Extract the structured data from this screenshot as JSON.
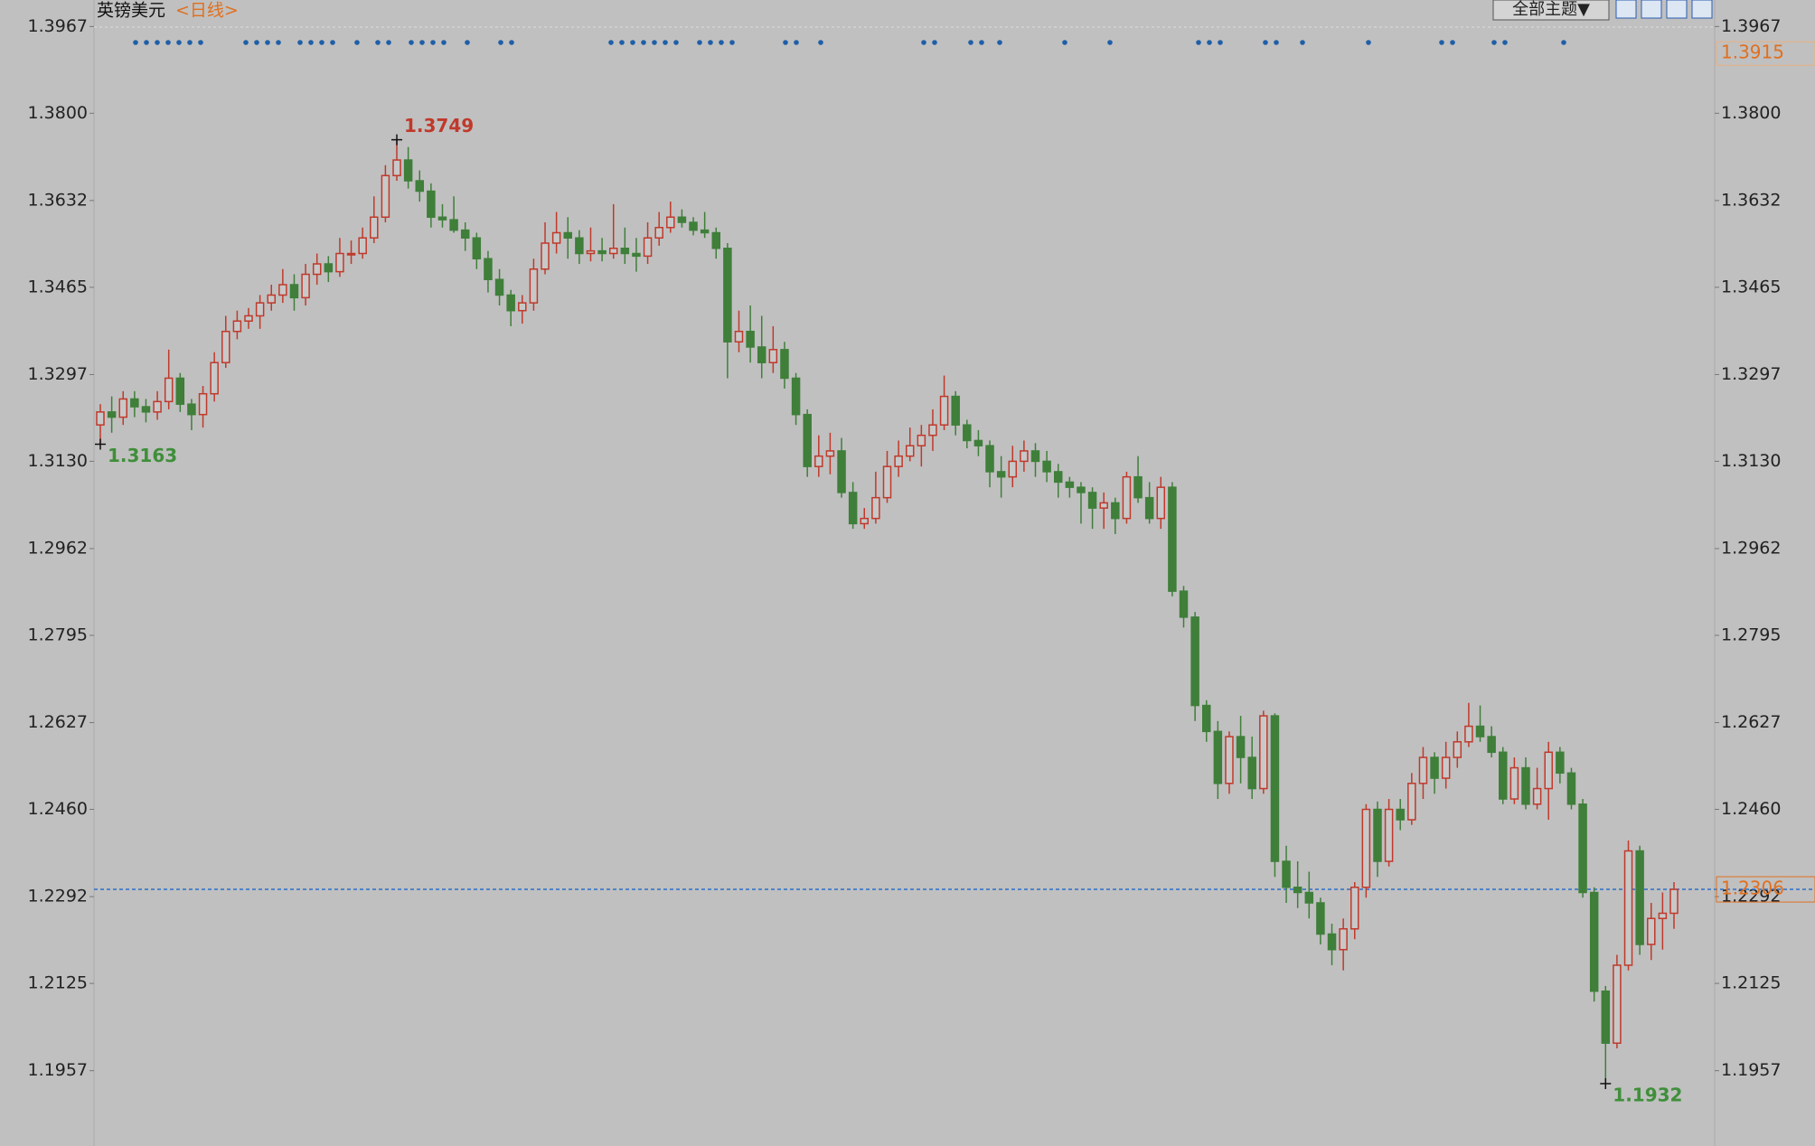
{
  "chart_data": {
    "type": "candlestick",
    "title": "英镑美元",
    "period": "<日线>",
    "theme_button": "全部主题▼",
    "ylim": [
      1.1812,
      1.4018
    ],
    "yticks": [
      1.3967,
      {
        "value": 1.38,
        "label": "1.3800"
      },
      1.3632,
      1.3465,
      1.3297,
      {
        "value": 1.313,
        "label": "1.3130"
      },
      1.2962,
      1.2795,
      1.2627,
      {
        "value": 1.246,
        "label": "1.2460"
      },
      1.2292,
      1.2125,
      1.1957
    ],
    "up_color": "#c0392b",
    "down_color": "#3f7f3a",
    "last_price": 1.2306,
    "marker_price": 1.3915,
    "high_label": 1.3749,
    "low_labels": [
      1.3163,
      1.1932
    ],
    "candles": [
      [
        1.32,
        1.324,
        1.3163,
        1.3225
      ],
      [
        1.3225,
        1.3255,
        1.3185,
        1.3215
      ],
      [
        1.3215,
        1.3265,
        1.32,
        1.325
      ],
      [
        1.325,
        1.3265,
        1.3215,
        1.3235
      ],
      [
        1.3235,
        1.325,
        1.3205,
        1.3225
      ],
      [
        1.3225,
        1.3265,
        1.321,
        1.3245
      ],
      [
        1.3245,
        1.3345,
        1.323,
        1.329
      ],
      [
        1.329,
        1.33,
        1.3225,
        1.324
      ],
      [
        1.324,
        1.325,
        1.319,
        1.322
      ],
      [
        1.322,
        1.3275,
        1.3195,
        1.326
      ],
      [
        1.326,
        1.334,
        1.3245,
        1.332
      ],
      [
        1.332,
        1.341,
        1.331,
        1.338
      ],
      [
        1.338,
        1.342,
        1.3365,
        1.34
      ],
      [
        1.34,
        1.3425,
        1.3385,
        1.341
      ],
      [
        1.341,
        1.345,
        1.3385,
        1.3435
      ],
      [
        1.3435,
        1.347,
        1.342,
        1.345
      ],
      [
        1.345,
        1.35,
        1.3435,
        1.347
      ],
      [
        1.347,
        1.349,
        1.342,
        1.3445
      ],
      [
        1.3445,
        1.351,
        1.343,
        1.349
      ],
      [
        1.349,
        1.353,
        1.347,
        1.351
      ],
      [
        1.351,
        1.3525,
        1.3475,
        1.3495
      ],
      [
        1.3495,
        1.356,
        1.3485,
        1.353
      ],
      [
        1.353,
        1.3555,
        1.351,
        1.353
      ],
      [
        1.353,
        1.358,
        1.352,
        1.356
      ],
      [
        1.356,
        1.364,
        1.355,
        1.36
      ],
      [
        1.36,
        1.37,
        1.359,
        1.368
      ],
      [
        1.368,
        1.3749,
        1.367,
        1.371
      ],
      [
        1.371,
        1.3735,
        1.3655,
        1.367
      ],
      [
        1.367,
        1.369,
        1.363,
        1.365
      ],
      [
        1.365,
        1.3665,
        1.358,
        1.36
      ],
      [
        1.36,
        1.3625,
        1.358,
        1.3595
      ],
      [
        1.3595,
        1.364,
        1.357,
        1.3575
      ],
      [
        1.3575,
        1.359,
        1.3535,
        1.356
      ],
      [
        1.356,
        1.357,
        1.35,
        1.352
      ],
      [
        1.352,
        1.3535,
        1.3455,
        1.348
      ],
      [
        1.348,
        1.35,
        1.343,
        1.345
      ],
      [
        1.345,
        1.346,
        1.339,
        1.342
      ],
      [
        1.342,
        1.345,
        1.3395,
        1.3435
      ],
      [
        1.3435,
        1.352,
        1.342,
        1.35
      ],
      [
        1.35,
        1.359,
        1.349,
        1.355
      ],
      [
        1.355,
        1.361,
        1.353,
        1.357
      ],
      [
        1.357,
        1.36,
        1.352,
        1.356
      ],
      [
        1.356,
        1.3575,
        1.351,
        1.353
      ],
      [
        1.353,
        1.358,
        1.3515,
        1.3535
      ],
      [
        1.3535,
        1.356,
        1.3515,
        1.353
      ],
      [
        1.353,
        1.3625,
        1.352,
        1.354
      ],
      [
        1.354,
        1.358,
        1.351,
        1.353
      ],
      [
        1.353,
        1.356,
        1.3495,
        1.3525
      ],
      [
        1.3525,
        1.359,
        1.351,
        1.356
      ],
      [
        1.356,
        1.361,
        1.3545,
        1.358
      ],
      [
        1.358,
        1.363,
        1.357,
        1.36
      ],
      [
        1.36,
        1.3615,
        1.358,
        1.359
      ],
      [
        1.359,
        1.36,
        1.3565,
        1.3575
      ],
      [
        1.3575,
        1.361,
        1.356,
        1.357
      ],
      [
        1.357,
        1.358,
        1.352,
        1.354
      ],
      [
        1.354,
        1.355,
        1.329,
        1.336
      ],
      [
        1.336,
        1.342,
        1.334,
        1.338
      ],
      [
        1.338,
        1.343,
        1.332,
        1.335
      ],
      [
        1.335,
        1.341,
        1.329,
        1.332
      ],
      [
        1.332,
        1.339,
        1.33,
        1.3345
      ],
      [
        1.3345,
        1.336,
        1.327,
        1.329
      ],
      [
        1.329,
        1.33,
        1.32,
        1.322
      ],
      [
        1.322,
        1.323,
        1.31,
        1.312
      ],
      [
        1.312,
        1.318,
        1.31,
        1.314
      ],
      [
        1.314,
        1.3185,
        1.3105,
        1.315
      ],
      [
        1.315,
        1.3175,
        1.306,
        1.307
      ],
      [
        1.307,
        1.309,
        1.3,
        1.301
      ],
      [
        1.301,
        1.304,
        1.3,
        1.302
      ],
      [
        1.302,
        1.311,
        1.301,
        1.306
      ],
      [
        1.306,
        1.315,
        1.305,
        1.312
      ],
      [
        1.312,
        1.317,
        1.31,
        1.314
      ],
      [
        1.314,
        1.3195,
        1.313,
        1.316
      ],
      [
        1.316,
        1.32,
        1.312,
        1.318
      ],
      [
        1.318,
        1.323,
        1.315,
        1.32
      ],
      [
        1.32,
        1.3295,
        1.319,
        1.3255
      ],
      [
        1.3255,
        1.3265,
        1.318,
        1.32
      ],
      [
        1.32,
        1.321,
        1.3155,
        1.317
      ],
      [
        1.317,
        1.319,
        1.314,
        1.316
      ],
      [
        1.316,
        1.317,
        1.308,
        1.311
      ],
      [
        1.311,
        1.314,
        1.306,
        1.31
      ],
      [
        1.31,
        1.316,
        1.308,
        1.313
      ],
      [
        1.313,
        1.317,
        1.311,
        1.315
      ],
      [
        1.315,
        1.3165,
        1.31,
        1.313
      ],
      [
        1.313,
        1.315,
        1.309,
        1.311
      ],
      [
        1.311,
        1.3125,
        1.306,
        1.309
      ],
      [
        1.309,
        1.31,
        1.306,
        1.308
      ],
      [
        1.308,
        1.309,
        1.301,
        1.307
      ],
      [
        1.307,
        1.308,
        1.3,
        1.304
      ],
      [
        1.304,
        1.307,
        1.3,
        1.305
      ],
      [
        1.305,
        1.306,
        1.299,
        1.302
      ],
      [
        1.302,
        1.311,
        1.301,
        1.31
      ],
      [
        1.31,
        1.314,
        1.305,
        1.306
      ],
      [
        1.306,
        1.309,
        1.301,
        1.302
      ],
      [
        1.302,
        1.31,
        1.3,
        1.308
      ],
      [
        1.308,
        1.309,
        1.287,
        1.288
      ],
      [
        1.288,
        1.289,
        1.281,
        1.283
      ],
      [
        1.283,
        1.284,
        1.263,
        1.266
      ],
      [
        1.266,
        1.267,
        1.259,
        1.261
      ],
      [
        1.261,
        1.263,
        1.248,
        1.251
      ],
      [
        1.251,
        1.261,
        1.249,
        1.26
      ],
      [
        1.26,
        1.264,
        1.251,
        1.256
      ],
      [
        1.256,
        1.26,
        1.248,
        1.25
      ],
      [
        1.25,
        1.265,
        1.249,
        1.264
      ],
      [
        1.264,
        1.2645,
        1.233,
        1.236
      ],
      [
        1.236,
        1.239,
        1.228,
        1.231
      ],
      [
        1.231,
        1.236,
        1.227,
        1.23
      ],
      [
        1.23,
        1.234,
        1.225,
        1.228
      ],
      [
        1.228,
        1.229,
        1.22,
        1.222
      ],
      [
        1.222,
        1.224,
        1.216,
        1.219
      ],
      [
        1.219,
        1.225,
        1.215,
        1.223
      ],
      [
        1.223,
        1.232,
        1.221,
        1.231
      ],
      [
        1.231,
        1.247,
        1.229,
        1.246
      ],
      [
        1.246,
        1.2475,
        1.233,
        1.236
      ],
      [
        1.236,
        1.248,
        1.235,
        1.246
      ],
      [
        1.246,
        1.248,
        1.242,
        1.244
      ],
      [
        1.244,
        1.253,
        1.243,
        1.251
      ],
      [
        1.251,
        1.258,
        1.248,
        1.256
      ],
      [
        1.256,
        1.257,
        1.249,
        1.252
      ],
      [
        1.252,
        1.259,
        1.25,
        1.256
      ],
      [
        1.256,
        1.261,
        1.254,
        1.259
      ],
      [
        1.259,
        1.2665,
        1.258,
        1.262
      ],
      [
        1.262,
        1.266,
        1.259,
        1.26
      ],
      [
        1.26,
        1.262,
        1.256,
        1.257
      ],
      [
        1.257,
        1.258,
        1.247,
        1.248
      ],
      [
        1.248,
        1.256,
        1.247,
        1.254
      ],
      [
        1.254,
        1.256,
        1.246,
        1.247
      ],
      [
        1.247,
        1.254,
        1.246,
        1.25
      ],
      [
        1.25,
        1.259,
        1.244,
        1.257
      ],
      [
        1.257,
        1.258,
        1.251,
        1.253
      ],
      [
        1.253,
        1.254,
        1.246,
        1.247
      ],
      [
        1.247,
        1.248,
        1.229,
        1.23
      ],
      [
        1.23,
        1.231,
        1.209,
        1.211
      ],
      [
        1.211,
        1.212,
        1.1932,
        1.201
      ],
      [
        1.201,
        1.218,
        1.2,
        1.216
      ],
      [
        1.216,
        1.24,
        1.215,
        1.238
      ],
      [
        1.238,
        1.239,
        1.218,
        1.22
      ],
      [
        1.22,
        1.228,
        1.217,
        1.225
      ],
      [
        1.225,
        1.23,
        1.219,
        1.226
      ],
      [
        1.226,
        1.232,
        1.223,
        1.2306
      ]
    ]
  }
}
